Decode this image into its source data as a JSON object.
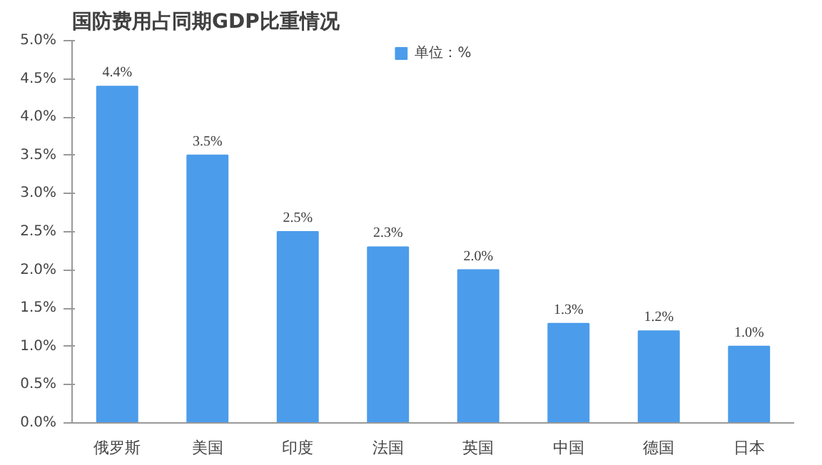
{
  "chart_data": {
    "type": "bar",
    "title": "国防费用占同期GDP比重情况",
    "categories": [
      "俄罗斯",
      "美国",
      "印度",
      "法国",
      "英国",
      "中国",
      "德国",
      "日本"
    ],
    "series": [
      {
        "name": "单位：%",
        "color": "#4b9ceb",
        "values": [
          4.4,
          3.5,
          2.5,
          2.3,
          2.0,
          1.3,
          1.2,
          1.0
        ],
        "value_labels": [
          "4.4%",
          "3.5%",
          "2.5%",
          "2.3%",
          "2.0%",
          "1.3%",
          "1.2%",
          "1.0%"
        ]
      }
    ],
    "ylim": [
      0,
      5
    ],
    "yticks": [
      {
        "value": 0,
        "label": "0.0%"
      },
      {
        "value": 0.5,
        "label": "0.5%"
      },
      {
        "value": 1,
        "label": "1.0%"
      },
      {
        "value": 1.5,
        "label": "1.5%"
      },
      {
        "value": 2,
        "label": "2.0%"
      },
      {
        "value": 2.5,
        "label": "2.5%"
      },
      {
        "value": 3,
        "label": "3.0%"
      },
      {
        "value": 3.5,
        "label": "3.5%"
      },
      {
        "value": 4,
        "label": "4.0%"
      },
      {
        "value": 4.5,
        "label": "4.5%"
      },
      {
        "value": 5,
        "label": "5.0%"
      }
    ],
    "grid": false,
    "legend": "top"
  }
}
